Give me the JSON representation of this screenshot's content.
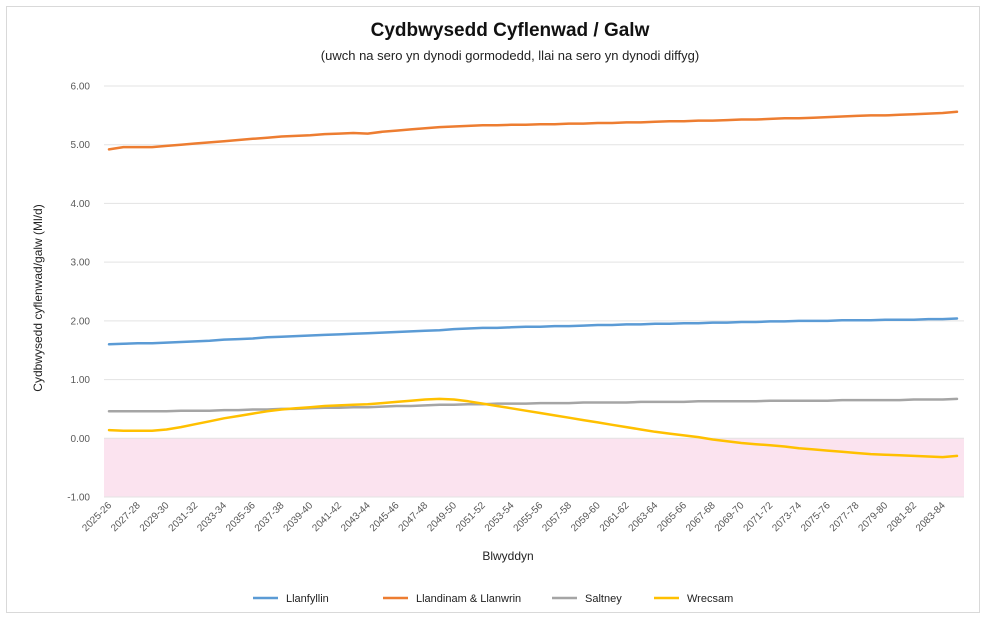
{
  "chart_data": {
    "type": "line",
    "title": "Cydbwysedd Cyflenwad / Galw",
    "subtitle": "(uwch na sero yn dynodi gormodedd, llai na sero yn dynodi diffyg)",
    "xlabel": "Blwyddyn",
    "ylabel": "Cydbwysedd cyflenwad/galw (Ml/d)",
    "ylim": [
      -1.0,
      6.0
    ],
    "yticks": [
      "-1.00",
      "0.00",
      "1.00",
      "2.00",
      "3.00",
      "4.00",
      "5.00",
      "6.00"
    ],
    "grid": true,
    "legend_position": "bottom",
    "deficit_region": {
      "from": -1.0,
      "to": 0.0,
      "color": "#fbe3ef"
    },
    "categories": [
      "2025-26",
      "2026-27",
      "2027-28",
      "2028-29",
      "2029-30",
      "2030-31",
      "2031-32",
      "2032-33",
      "2033-34",
      "2034-35",
      "2035-36",
      "2036-37",
      "2037-38",
      "2038-39",
      "2039-40",
      "2040-41",
      "2041-42",
      "2042-43",
      "2043-44",
      "2044-45",
      "2045-46",
      "2046-47",
      "2047-48",
      "2048-49",
      "2049-50",
      "2050-51",
      "2051-52",
      "2052-53",
      "2053-54",
      "2054-55",
      "2055-56",
      "2056-57",
      "2057-58",
      "2058-59",
      "2059-60",
      "2060-61",
      "2061-62",
      "2062-63",
      "2063-64",
      "2064-65",
      "2065-66",
      "2066-67",
      "2067-68",
      "2068-69",
      "2069-70",
      "2070-71",
      "2071-72",
      "2072-73",
      "2073-74",
      "2074-75",
      "2075-76",
      "2076-77",
      "2077-78",
      "2078-79",
      "2079-80",
      "2080-81",
      "2081-82",
      "2082-83",
      "2083-84",
      "2084-85"
    ],
    "tick_labels": [
      "2025-26",
      "2027-28",
      "2029-30",
      "2031-32",
      "2033-34",
      "2035-36",
      "2037-38",
      "2039-40",
      "2041-42",
      "2043-44",
      "2045-46",
      "2047-48",
      "2049-50",
      "2051-52",
      "2053-54",
      "2055-56",
      "2057-58",
      "2059-60",
      "2061-62",
      "2063-64",
      "2065-66",
      "2067-68",
      "2069-70",
      "2071-72",
      "2073-74",
      "2075-76",
      "2077-78",
      "2079-80",
      "2081-82",
      "2083-84"
    ],
    "series": [
      {
        "name": "Llanfyllin",
        "color": "#5b9bd5",
        "values": [
          1.6,
          1.61,
          1.62,
          1.62,
          1.63,
          1.64,
          1.65,
          1.66,
          1.68,
          1.69,
          1.7,
          1.72,
          1.73,
          1.74,
          1.75,
          1.76,
          1.77,
          1.78,
          1.79,
          1.8,
          1.81,
          1.82,
          1.83,
          1.84,
          1.86,
          1.87,
          1.88,
          1.88,
          1.89,
          1.9,
          1.9,
          1.91,
          1.91,
          1.92,
          1.93,
          1.93,
          1.94,
          1.94,
          1.95,
          1.95,
          1.96,
          1.96,
          1.97,
          1.97,
          1.98,
          1.98,
          1.99,
          1.99,
          2.0,
          2.0,
          2.0,
          2.01,
          2.01,
          2.01,
          2.02,
          2.02,
          2.02,
          2.03,
          2.03,
          2.04
        ]
      },
      {
        "name": "Llandinam & Llanwrin",
        "color": "#ed7d31",
        "values": [
          4.92,
          4.96,
          4.96,
          4.96,
          4.98,
          5.0,
          5.02,
          5.04,
          5.06,
          5.08,
          5.1,
          5.12,
          5.14,
          5.15,
          5.16,
          5.18,
          5.19,
          5.2,
          5.19,
          5.22,
          5.24,
          5.26,
          5.28,
          5.3,
          5.31,
          5.32,
          5.33,
          5.33,
          5.34,
          5.34,
          5.35,
          5.35,
          5.36,
          5.36,
          5.37,
          5.37,
          5.38,
          5.38,
          5.39,
          5.4,
          5.4,
          5.41,
          5.41,
          5.42,
          5.43,
          5.43,
          5.44,
          5.45,
          5.45,
          5.46,
          5.47,
          5.48,
          5.49,
          5.5,
          5.5,
          5.51,
          5.52,
          5.53,
          5.54,
          5.56
        ]
      },
      {
        "name": "Saltney",
        "color": "#a5a5a5",
        "values": [
          0.46,
          0.46,
          0.46,
          0.46,
          0.46,
          0.47,
          0.47,
          0.47,
          0.48,
          0.48,
          0.49,
          0.49,
          0.5,
          0.5,
          0.51,
          0.52,
          0.52,
          0.53,
          0.53,
          0.54,
          0.55,
          0.55,
          0.56,
          0.57,
          0.57,
          0.58,
          0.58,
          0.59,
          0.59,
          0.59,
          0.6,
          0.6,
          0.6,
          0.61,
          0.61,
          0.61,
          0.61,
          0.62,
          0.62,
          0.62,
          0.62,
          0.63,
          0.63,
          0.63,
          0.63,
          0.63,
          0.64,
          0.64,
          0.64,
          0.64,
          0.64,
          0.65,
          0.65,
          0.65,
          0.65,
          0.65,
          0.66,
          0.66,
          0.66,
          0.67
        ]
      },
      {
        "name": "Wrecsam",
        "color": "#ffc000",
        "values": [
          0.14,
          0.13,
          0.13,
          0.13,
          0.15,
          0.19,
          0.24,
          0.29,
          0.34,
          0.38,
          0.42,
          0.46,
          0.49,
          0.51,
          0.53,
          0.55,
          0.56,
          0.57,
          0.58,
          0.6,
          0.62,
          0.64,
          0.66,
          0.67,
          0.66,
          0.63,
          0.59,
          0.55,
          0.51,
          0.47,
          0.43,
          0.39,
          0.35,
          0.31,
          0.27,
          0.23,
          0.19,
          0.15,
          0.11,
          0.08,
          0.05,
          0.02,
          -0.02,
          -0.05,
          -0.08,
          -0.1,
          -0.12,
          -0.14,
          -0.17,
          -0.19,
          -0.21,
          -0.23,
          -0.25,
          -0.27,
          -0.28,
          -0.29,
          -0.3,
          -0.31,
          -0.32,
          -0.3
        ]
      }
    ]
  }
}
